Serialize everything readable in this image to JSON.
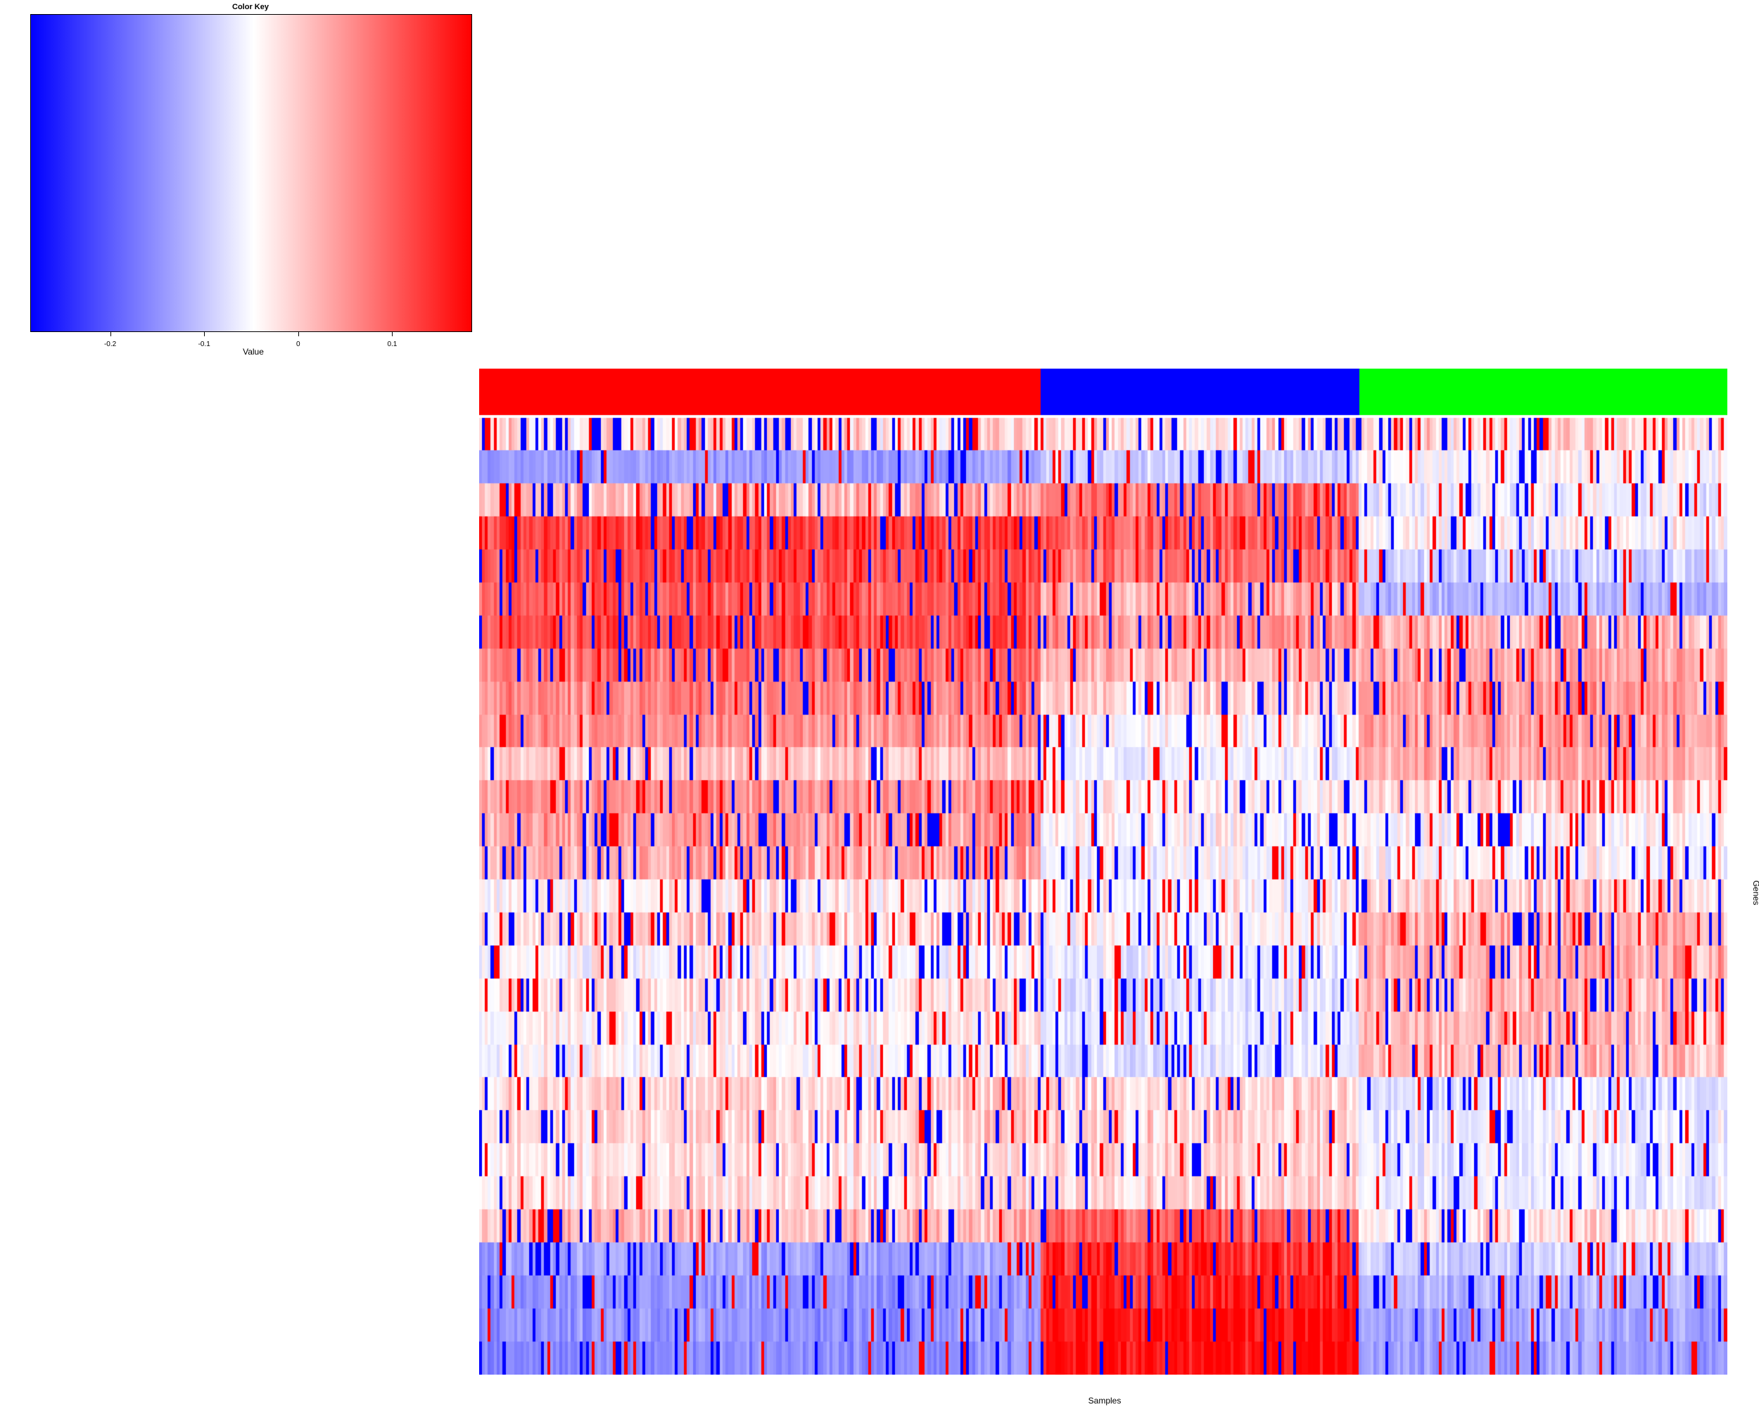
{
  "color_key": {
    "title": "Color Key",
    "xlabel": "Value",
    "range": [
      -0.285,
      0.185
    ],
    "colors": {
      "low": "#0000ff",
      "mid": "#ffffff",
      "high": "#ff0000"
    },
    "ticks": [
      {
        "value": -0.2,
        "label": "-0.2"
      },
      {
        "value": -0.1,
        "label": "-0.1"
      },
      {
        "value": 0,
        "label": "0"
      },
      {
        "value": 0.1,
        "label": "0.1"
      }
    ]
  },
  "chart_data": {
    "type": "heatmap",
    "xlabel": "Samples",
    "ylabel": "Genes",
    "column_groups": [
      {
        "color": "#ff0000",
        "fraction": 0.45
      },
      {
        "color": "#0000ff",
        "fraction": 0.255
      },
      {
        "color": "#00ff00",
        "fraction": 0.295
      }
    ],
    "n_columns": 420,
    "rows": [
      {
        "means": [
          0.02,
          0.02,
          0.02
        ],
        "noise": 0.95
      },
      {
        "means": [
          -0.11,
          -0.05,
          0.0
        ],
        "noise": 0.35
      },
      {
        "means": [
          0.05,
          0.1,
          -0.02
        ],
        "noise": 0.75
      },
      {
        "means": [
          0.14,
          0.12,
          0.0
        ],
        "noise": 0.55
      },
      {
        "means": [
          0.13,
          0.1,
          -0.05
        ],
        "noise": 0.5
      },
      {
        "means": [
          0.12,
          0.06,
          -0.08
        ],
        "noise": 0.45
      },
      {
        "means": [
          0.13,
          0.08,
          0.05
        ],
        "noise": 0.55
      },
      {
        "means": [
          0.1,
          0.05,
          0.06
        ],
        "noise": 0.5
      },
      {
        "means": [
          0.09,
          0.03,
          0.07
        ],
        "noise": 0.45
      },
      {
        "means": [
          0.08,
          0.0,
          0.07
        ],
        "noise": 0.45
      },
      {
        "means": [
          0.04,
          -0.02,
          0.06
        ],
        "noise": 0.4
      },
      {
        "means": [
          0.08,
          0.01,
          0.03
        ],
        "noise": 0.5
      },
      {
        "means": [
          0.07,
          0.0,
          0.0
        ],
        "noise": 0.55
      },
      {
        "means": [
          0.06,
          -0.01,
          0.0
        ],
        "noise": 0.55
      },
      {
        "means": [
          0.01,
          0.0,
          0.03
        ],
        "noise": 0.6
      },
      {
        "means": [
          0.03,
          0.0,
          0.06
        ],
        "noise": 0.6
      },
      {
        "means": [
          0.0,
          -0.02,
          0.06
        ],
        "noise": 0.55
      },
      {
        "means": [
          0.02,
          -0.03,
          0.05
        ],
        "noise": 0.5
      },
      {
        "means": [
          0.01,
          -0.02,
          0.05
        ],
        "noise": 0.5
      },
      {
        "means": [
          0.0,
          -0.03,
          0.05
        ],
        "noise": 0.45
      },
      {
        "means": [
          0.03,
          0.03,
          -0.03
        ],
        "noise": 0.45
      },
      {
        "means": [
          0.03,
          0.03,
          -0.02
        ],
        "noise": 0.45
      },
      {
        "means": [
          0.02,
          0.03,
          -0.02
        ],
        "noise": 0.4
      },
      {
        "means": [
          0.02,
          0.03,
          -0.02
        ],
        "noise": 0.4
      },
      {
        "means": [
          0.05,
          0.12,
          0.02
        ],
        "noise": 0.6
      },
      {
        "means": [
          -0.1,
          0.15,
          -0.05
        ],
        "noise": 0.55
      },
      {
        "means": [
          -0.12,
          0.16,
          -0.08
        ],
        "noise": 0.5
      },
      {
        "means": [
          -0.12,
          0.18,
          -0.1
        ],
        "noise": 0.5
      },
      {
        "means": [
          -0.13,
          0.18,
          -0.11
        ],
        "noise": 0.45
      }
    ],
    "value_range": [
      -0.285,
      0.185
    ]
  }
}
